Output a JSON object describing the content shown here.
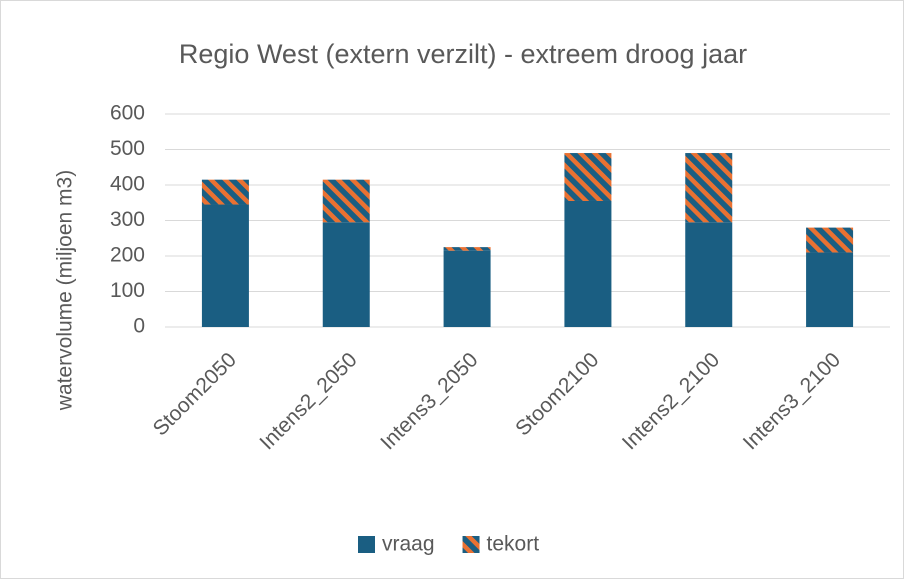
{
  "chart_data": {
    "type": "stacked-bar",
    "title": "Regio West (extern verzilt) - extreem droog jaar",
    "y_label": "watervolume (miljoen m3)",
    "categories": [
      "Stoom2050",
      "Intens2_2050",
      "Intens3_2050",
      "Stoom2100",
      "Intens2_2100",
      "Intens3_2100"
    ],
    "series": [
      {
        "name": "vraag",
        "color": "#1a5e82",
        "values": [
          345,
          295,
          215,
          355,
          295,
          210
        ]
      },
      {
        "name": "tekort",
        "color": "#e97132",
        "pattern": "hatch",
        "values": [
          70,
          120,
          10,
          135,
          195,
          70
        ]
      }
    ],
    "ylim": [
      0,
      600
    ],
    "yticks": [
      0,
      100,
      200,
      300,
      400,
      500,
      600
    ],
    "grid": true,
    "legend": "bottom"
  }
}
